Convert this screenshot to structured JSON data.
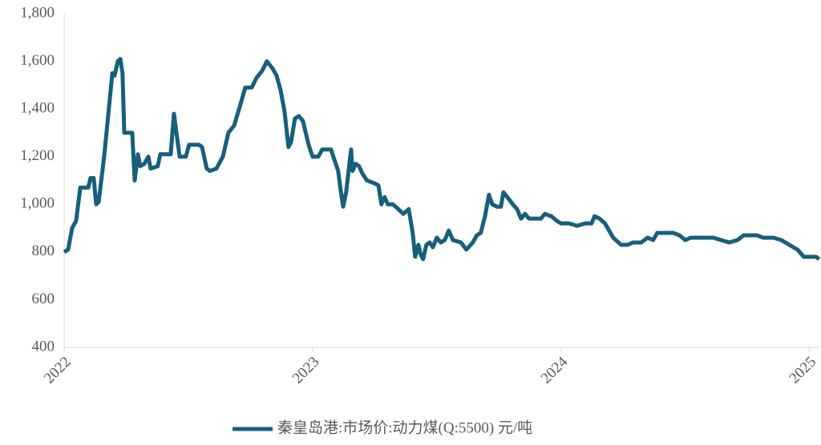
{
  "chart_data": {
    "type": "line",
    "x": [
      2022,
      2022.016,
      2022.032,
      2022.048,
      2022.065,
      2022.097,
      2022.106,
      2022.119,
      2022.129,
      2022.139,
      2022.161,
      2022.194,
      2022.203,
      2022.216,
      2022.226,
      2022.235,
      2022.242,
      2022.274,
      2022.284,
      2022.297,
      2022.306,
      2022.323,
      2022.339,
      2022.348,
      2022.377,
      2022.387,
      2022.429,
      2022.442,
      2022.452,
      2022.465,
      2022.49,
      2022.503,
      2022.542,
      2022.555,
      2022.574,
      2022.587,
      2022.613,
      2022.639,
      2022.661,
      2022.684,
      2022.71,
      2022.729,
      2022.755,
      2022.774,
      2022.797,
      2022.816,
      2022.839,
      2022.855,
      2022.871,
      2022.887,
      2022.903,
      2022.913,
      2022.929,
      2022.945,
      2022.961,
      2022.984,
      2023,
      2023.023,
      2023.039,
      2023.074,
      2023.09,
      2023.103,
      2023.113,
      2023.123,
      2023.135,
      2023.155,
      2023.161,
      2023.174,
      2023.187,
      2023.2,
      2023.219,
      2023.245,
      2023.265,
      2023.277,
      2023.29,
      2023.303,
      2023.323,
      2023.345,
      2023.365,
      2023.387,
      2023.403,
      2023.413,
      2023.426,
      2023.435,
      2023.445,
      2023.458,
      2023.471,
      2023.484,
      2023.5,
      2023.516,
      2023.532,
      2023.548,
      2023.565,
      2023.597,
      2023.619,
      2023.645,
      2023.661,
      2023.677,
      2023.694,
      2023.71,
      2023.723,
      2023.742,
      2023.758,
      2023.768,
      2023.784,
      2023.806,
      2023.823,
      2023.839,
      2023.855,
      2023.871,
      2023.897,
      2023.919,
      2023.935,
      2023.961,
      2023.984,
      2024,
      2024.032,
      2024.065,
      2024.097,
      2024.123,
      2024.135,
      2024.155,
      2024.177,
      2024.21,
      2024.242,
      2024.268,
      2024.29,
      2024.323,
      2024.348,
      2024.371,
      2024.387,
      2024.419,
      2024.452,
      2024.477,
      2024.5,
      2024.523,
      2024.548,
      2024.581,
      2024.613,
      2024.645,
      2024.677,
      2024.71,
      2024.735,
      2024.758,
      2024.79,
      2024.813,
      2024.855,
      2024.887,
      2024.919,
      2024.952,
      2024.977,
      2025,
      2025.026,
      2025.039
    ],
    "series": [
      {
        "name": "秦皇岛港:市场价:动力煤(Q:5500) 元/吨",
        "color": "#175f7d",
        "values": [
          800,
          810,
          900,
          930,
          1070,
          1070,
          1110,
          1110,
          1000,
          1010,
          1200,
          1550,
          1540,
          1600,
          1610,
          1550,
          1300,
          1300,
          1100,
          1210,
          1160,
          1170,
          1200,
          1150,
          1160,
          1210,
          1210,
          1380,
          1300,
          1200,
          1200,
          1250,
          1250,
          1240,
          1150,
          1140,
          1150,
          1200,
          1300,
          1330,
          1420,
          1490,
          1490,
          1530,
          1560,
          1600,
          1570,
          1540,
          1480,
          1390,
          1240,
          1260,
          1360,
          1370,
          1350,
          1250,
          1200,
          1200,
          1230,
          1230,
          1180,
          1140,
          1060,
          990,
          1050,
          1230,
          1140,
          1170,
          1160,
          1130,
          1100,
          1090,
          1080,
          1000,
          1030,
          1000,
          1000,
          980,
          960,
          980,
          880,
          780,
          830,
          790,
          770,
          830,
          840,
          820,
          860,
          840,
          850,
          890,
          850,
          840,
          810,
          840,
          870,
          880,
          950,
          1040,
          1000,
          990,
          990,
          1050,
          1030,
          1000,
          980,
          940,
          960,
          940,
          940,
          940,
          960,
          950,
          930,
          920,
          920,
          910,
          920,
          920,
          950,
          940,
          920,
          860,
          830,
          830,
          840,
          840,
          860,
          850,
          880,
          880,
          880,
          870,
          850,
          860,
          860,
          860,
          860,
          850,
          840,
          850,
          870,
          870,
          870,
          860,
          860,
          850,
          830,
          810,
          780,
          780,
          780,
          770
        ]
      }
    ],
    "xlim": [
      2022,
      2025.04
    ],
    "xticks": [
      2022,
      2023,
      2024,
      2025
    ],
    "ylim": [
      400,
      1800
    ],
    "yticks": [
      400,
      600,
      800,
      {
        "value": 1000,
        "label": "1,000"
      },
      {
        "value": 1200,
        "label": "1,200"
      },
      {
        "value": 1400,
        "label": "1,400"
      },
      {
        "value": 1600,
        "label": "1,600"
      },
      {
        "value": 1800,
        "label": "1,800"
      }
    ],
    "legend": "bottom"
  }
}
